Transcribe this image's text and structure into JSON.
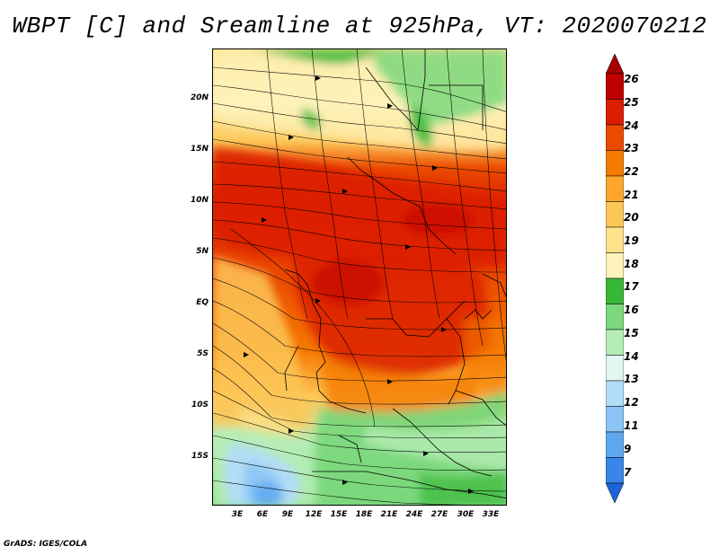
{
  "title": "WBPT [C] and Sreamline at 925hPa, VT: 2020070212",
  "footer": "GrADS: IGES/COLA",
  "map": {
    "lat_labels": [
      "20N",
      "15N",
      "10N",
      "5N",
      "EQ",
      "5S",
      "10S",
      "15S"
    ],
    "lon_labels": [
      "3E",
      "6E",
      "9E",
      "12E",
      "15E",
      "18E",
      "21E",
      "24E",
      "27E",
      "30E",
      "33E"
    ]
  },
  "colorbar": {
    "labels": [
      "26",
      "25",
      "24",
      "23",
      "22",
      "21",
      "20",
      "19",
      "18",
      "17",
      "16",
      "15",
      "14",
      "13",
      "12",
      "11",
      "9",
      "7"
    ],
    "colors": [
      "#a50000",
      "#c00000",
      "#dc1e00",
      "#eb4b00",
      "#f57a00",
      "#fca62e",
      "#fdc757",
      "#fde28a",
      "#fdf2b9",
      "#38b838",
      "#7bd87b",
      "#b6edb6",
      "#e2f7f2",
      "#b3dcf8",
      "#8ac5f5",
      "#5ea8ef",
      "#3a86e8",
      "#1e64d8"
    ]
  }
}
